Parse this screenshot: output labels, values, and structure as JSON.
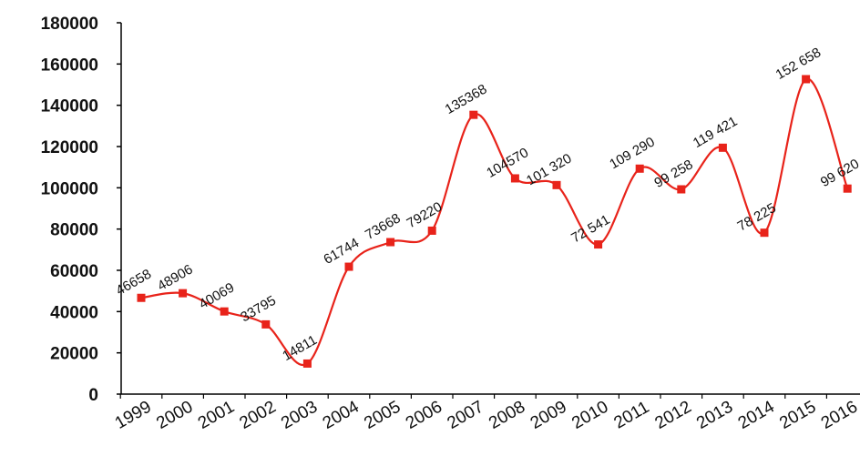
{
  "chart_data": {
    "type": "line",
    "title": "",
    "xlabel": "",
    "ylabel": "",
    "x": [
      "1999",
      "2000",
      "2001",
      "2002",
      "2003",
      "2004",
      "2005",
      "2006",
      "2007",
      "2008",
      "2009",
      "2010",
      "2011",
      "2012",
      "2013",
      "2014",
      "2015",
      "2016"
    ],
    "series": [
      {
        "values": [
          46658,
          48906,
          40069,
          33795,
          14811,
          61744,
          73668,
          79220,
          135368,
          104570,
          101320,
          72541,
          109290,
          99258,
          119421,
          78225,
          152658,
          99620
        ],
        "labels": [
          "46658",
          "48906",
          "40069",
          "33795",
          "14811",
          "61744",
          "73668",
          "79220",
          "135368",
          "104570",
          "101 320",
          "72 541",
          "109 290",
          "99 258",
          "119 421",
          "78 225",
          "152 658",
          "99 620"
        ],
        "color": "#e8231a"
      }
    ],
    "ylim": [
      0,
      180000
    ],
    "yticks": [
      0,
      20000,
      40000,
      60000,
      80000,
      100000,
      120000,
      140000,
      160000,
      180000
    ],
    "ytick_labels": [
      "0",
      "20000",
      "40000",
      "60000",
      "80000",
      "100000",
      "120000",
      "140000",
      "160000",
      "180000"
    ],
    "grid": false,
    "legend": "none",
    "axis_color": "#000000"
  }
}
